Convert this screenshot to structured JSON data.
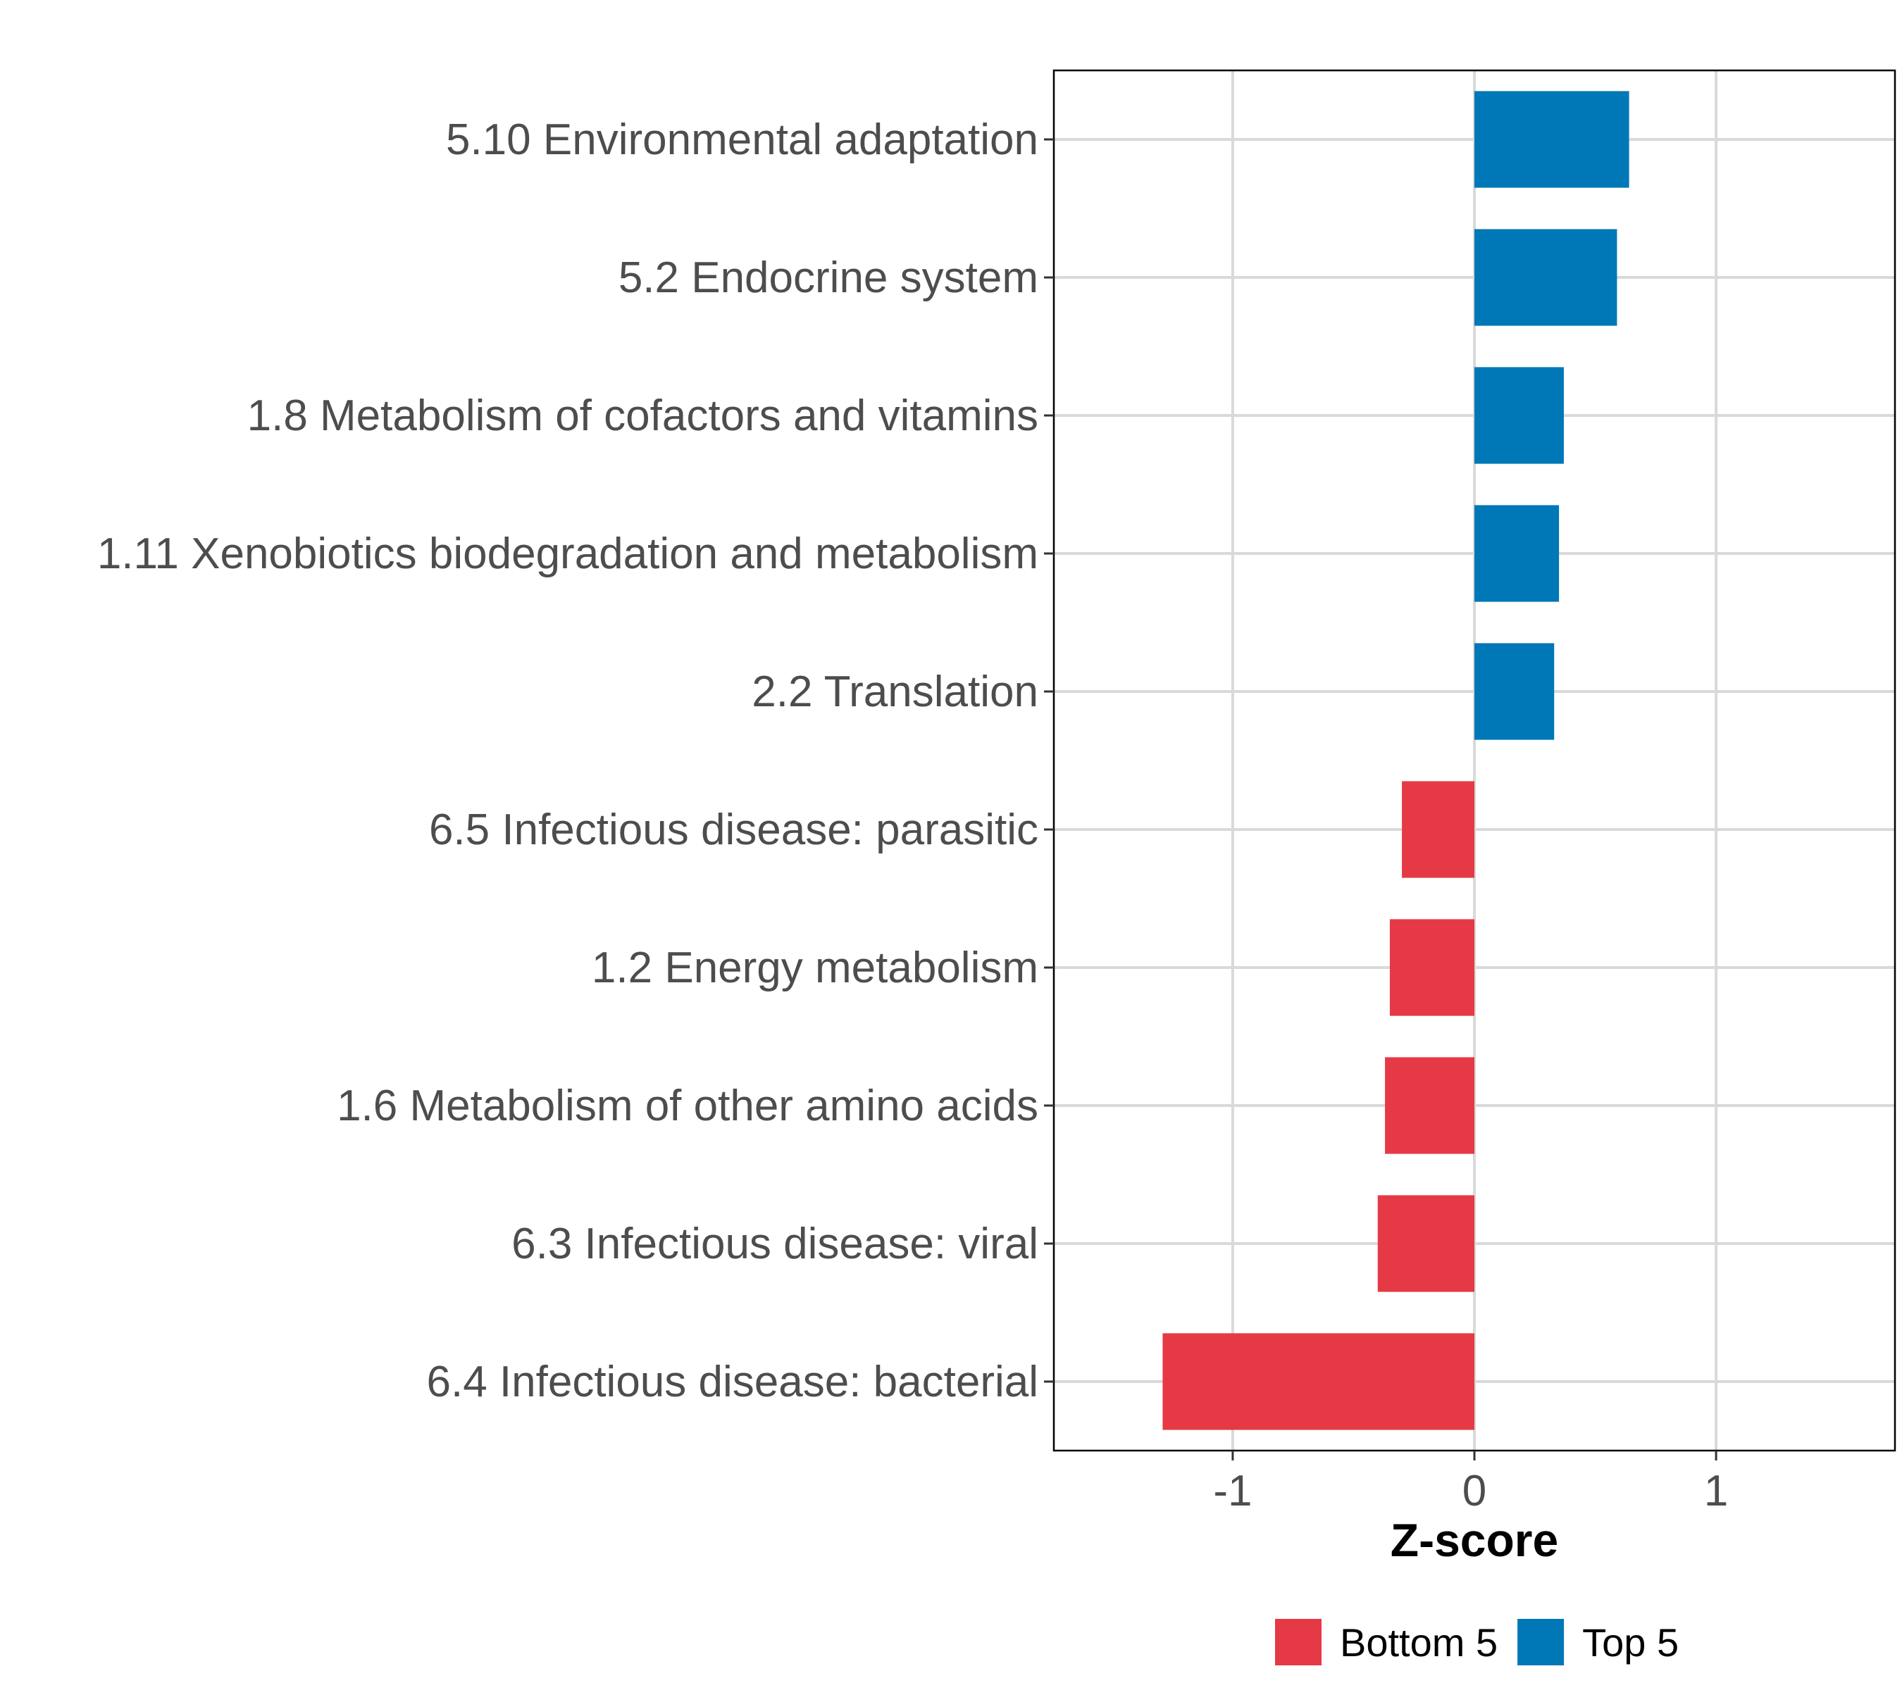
{
  "chart_data": {
    "type": "bar",
    "orientation": "horizontal",
    "title": "",
    "xlabel": "Z-score",
    "ylabel": "",
    "xlim": [
      -1.74,
      1.74
    ],
    "xticks": [
      -1,
      0,
      1
    ],
    "xtick_labels": [
      "-1",
      "0",
      "1"
    ],
    "grid": true,
    "categories": [
      "5.10 Environmental adaptation",
      "5.2 Endocrine system",
      "1.8 Metabolism of cofactors and vitamins",
      "1.11 Xenobiotics biodegradation and metabolism",
      "2.2 Translation",
      "6.5 Infectious disease: parasitic",
      "1.2 Energy metabolism",
      "1.6 Metabolism of other amino acids",
      "6.3 Infectious disease: viral",
      "6.4 Infectious disease: bacterial"
    ],
    "values": [
      0.64,
      0.59,
      0.37,
      0.35,
      0.33,
      -0.3,
      -0.35,
      -0.37,
      -0.4,
      -1.29
    ],
    "groups": [
      "Top 5",
      "Top 5",
      "Top 5",
      "Top 5",
      "Top 5",
      "Bottom 5",
      "Bottom 5",
      "Bottom 5",
      "Bottom 5",
      "Bottom 5"
    ],
    "legend": {
      "position": "bottom",
      "entries": [
        {
          "label": "Bottom 5",
          "color": "#E63946"
        },
        {
          "label": "Top 5",
          "color": "#0077B6"
        }
      ]
    }
  }
}
